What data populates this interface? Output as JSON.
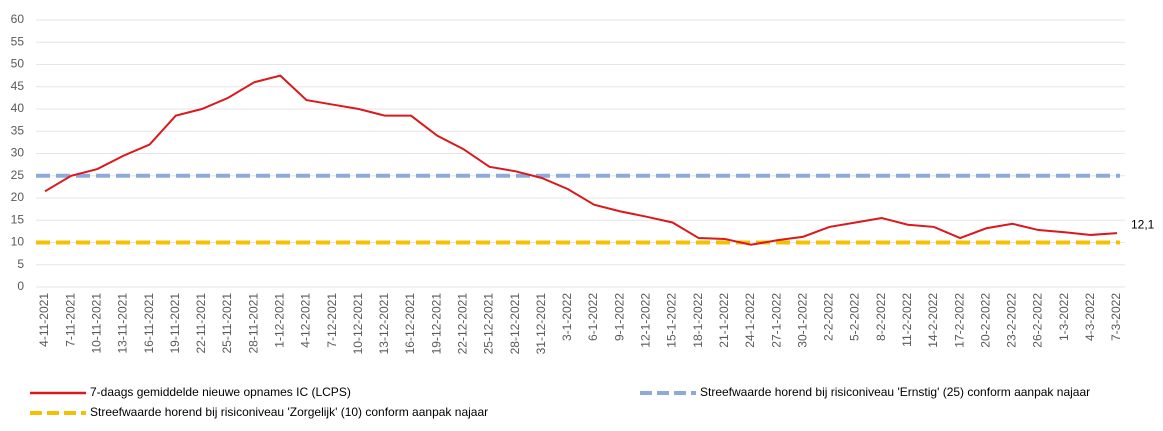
{
  "chart_data": {
    "type": "line",
    "categories": [
      "4-11-2021",
      "7-11-2021",
      "10-11-2021",
      "13-11-2021",
      "16-11-2021",
      "19-11-2021",
      "22-11-2021",
      "25-11-2021",
      "28-11-2021",
      "1-12-2021",
      "4-12-2021",
      "7-12-2021",
      "10-12-2021",
      "13-12-2021",
      "16-12-2021",
      "19-12-2021",
      "22-12-2021",
      "25-12-2021",
      "28-12-2021",
      "31-12-2021",
      "3-1-2022",
      "6-1-2022",
      "9-1-2022",
      "12-1-2022",
      "15-1-2022",
      "18-1-2022",
      "21-1-2022",
      "24-1-2022",
      "27-1-2022",
      "30-1-2022",
      "2-2-2022",
      "5-2-2022",
      "8-2-2022",
      "11-2-2022",
      "14-2-2022",
      "17-2-2022",
      "20-2-2022",
      "23-2-2022",
      "26-2-2022",
      "1-3-2022",
      "4-3-2022",
      "7-3-2022"
    ],
    "series": [
      {
        "name": "7-daags gemiddelde nieuwe opnames IC (LCPS)",
        "color": "#d9191c",
        "values": [
          21.5,
          25,
          26.5,
          29.5,
          32,
          38.5,
          40,
          42.5,
          46,
          47.5,
          42,
          41,
          40,
          38.5,
          38.5,
          34,
          31,
          27,
          26,
          24.5,
          22,
          18.5,
          17,
          15.8,
          14.5,
          11,
          10.8,
          9.5,
          10.5,
          11.3,
          13.5,
          14.5,
          15.5,
          14,
          13.5,
          11,
          13.2,
          14.2,
          12.8,
          12.3,
          11.7,
          12.1
        ],
        "end_label": "12,1",
        "end_value": 12.1
      }
    ],
    "reference_lines": [
      {
        "name": "Streefwaarde horend bij risiconiveau 'Ernstig' (25) conform aanpak najaar",
        "color": "#8eaadb",
        "value": 25
      },
      {
        "name": "Streefwaarde horend bij risiconiveau 'Zorgelijk' (10) conform aanpak najaar",
        "color": "#f5c000",
        "value": 10
      }
    ],
    "ylim": [
      0,
      60
    ],
    "yticks": [
      0,
      5,
      10,
      15,
      20,
      25,
      30,
      35,
      40,
      45,
      50,
      55,
      60
    ],
    "grid": true
  }
}
